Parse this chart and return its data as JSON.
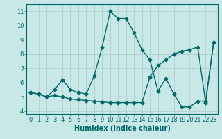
{
  "xlabel": "Humidex (Indice chaleur)",
  "background_color": "#c8e8e8",
  "grid_color": "#b0d0d0",
  "line_color": "#006868",
  "xlim": [
    -0.5,
    23.5
  ],
  "ylim": [
    3.8,
    11.5
  ],
  "yticks": [
    4,
    5,
    6,
    7,
    8,
    9,
    10,
    11
  ],
  "xticks": [
    0,
    1,
    2,
    3,
    4,
    5,
    6,
    7,
    8,
    9,
    10,
    11,
    12,
    13,
    14,
    15,
    16,
    17,
    18,
    19,
    20,
    21,
    22,
    23
  ],
  "series1_x": [
    0,
    1,
    2,
    3,
    4,
    5,
    6,
    7,
    8,
    9,
    10,
    11,
    12,
    13,
    14,
    15,
    16,
    17,
    18,
    19,
    20,
    21,
    22,
    23
  ],
  "series1_y": [
    5.3,
    5.2,
    5.0,
    5.5,
    6.2,
    5.5,
    5.3,
    5.2,
    6.5,
    8.5,
    11.0,
    10.5,
    10.5,
    9.5,
    8.3,
    7.6,
    5.4,
    6.3,
    5.2,
    4.3,
    4.3,
    4.7,
    4.7,
    8.8
  ],
  "series2_x": [
    0,
    1,
    2,
    3,
    4,
    5,
    6,
    7,
    8,
    9,
    10,
    11,
    12,
    13,
    14,
    15,
    16,
    17,
    18,
    19,
    20,
    21,
    22,
    23
  ],
  "series2_y": [
    5.3,
    5.2,
    5.0,
    5.1,
    5.0,
    4.85,
    4.8,
    4.75,
    4.7,
    4.65,
    4.6,
    4.6,
    4.6,
    4.6,
    4.6,
    6.4,
    7.2,
    7.6,
    8.0,
    8.2,
    8.3,
    8.5,
    4.6,
    8.8
  ],
  "marker_size": 2.5,
  "linewidth": 1.0,
  "tick_fontsize": 6,
  "xlabel_fontsize": 7
}
